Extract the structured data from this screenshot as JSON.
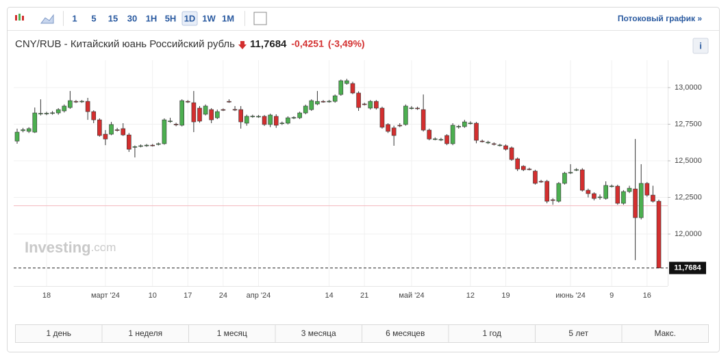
{
  "ui": {
    "toolbar": {
      "intervals": [
        "1",
        "5",
        "15",
        "30",
        "1H",
        "5H",
        "1D",
        "1W",
        "1M"
      ],
      "active": "1D",
      "streaming": "Потоковый график »"
    },
    "header": {
      "instrument": "CNY/RUB - Китайский юань Российский рубль",
      "price": "11,7684",
      "change": "-0,4251",
      "change_pct": "(-3,49%)",
      "info": "i"
    },
    "watermark": {
      "brand": "Investing",
      "suffix": ".com"
    },
    "ranges": [
      "1 день",
      "1 неделя",
      "1 месяц",
      "3 месяца",
      "6 месяцев",
      "1 год",
      "5 лет",
      "Макс."
    ]
  },
  "chart_data": {
    "type": "candlestick",
    "categories": [
      null,
      null,
      null,
      null,
      null,
      "18",
      null,
      null,
      null,
      null,
      null,
      null,
      null,
      null,
      null,
      "март '24",
      null,
      null,
      null,
      null,
      null,
      null,
      null,
      "10",
      null,
      null,
      null,
      null,
      null,
      "17",
      null,
      null,
      null,
      null,
      null,
      "24",
      null,
      null,
      null,
      null,
      null,
      "апр '24",
      null,
      null,
      null,
      null,
      null,
      null,
      null,
      null,
      null,
      null,
      null,
      "14",
      null,
      null,
      null,
      null,
      null,
      "21",
      null,
      null,
      null,
      null,
      null,
      null,
      null,
      "май '24",
      null,
      null,
      null,
      null,
      null,
      null,
      null,
      null,
      null,
      "12",
      null,
      null,
      null,
      null,
      null,
      "19",
      null,
      null,
      null,
      null,
      null,
      null,
      null,
      null,
      null,
      null,
      "июнь '24",
      null,
      null,
      null,
      null,
      null,
      null,
      "9",
      null,
      null,
      null,
      null,
      null,
      "16",
      null,
      null
    ],
    "open": [
      12.635,
      12.706,
      12.701,
      12.696,
      12.822,
      12.822,
      12.826,
      12.827,
      12.841,
      12.864,
      12.906,
      12.905,
      12.906,
      12.836,
      12.78,
      12.682,
      12.682,
      12.712,
      12.72,
      12.677,
      12.595,
      12.6,
      12.605,
      12.607,
      12.612,
      12.617,
      12.77,
      12.75,
      12.743,
      12.906,
      12.897,
      12.86,
      12.818,
      12.85,
      12.794,
      12.85,
      12.906,
      12.851,
      12.85,
      12.757,
      12.804,
      12.803,
      12.804,
      12.748,
      12.804,
      12.757,
      12.757,
      12.794,
      12.794,
      12.827,
      12.85,
      12.888,
      12.906,
      12.905,
      12.906,
      12.953,
      13.028,
      13.028,
      12.963,
      12.888,
      12.86,
      12.906,
      12.86,
      12.748,
      12.725,
      12.743,
      12.748,
      12.86,
      12.86,
      12.85,
      12.71,
      12.649,
      12.645,
      12.673,
      12.617,
      12.734,
      12.734,
      12.757,
      12.757,
      12.635,
      12.626,
      12.617,
      12.607,
      12.603,
      12.589,
      12.514,
      12.463,
      12.444,
      12.43,
      12.36,
      12.36,
      12.234,
      12.224,
      12.346,
      12.42,
      12.439,
      12.439,
      12.299,
      12.276,
      12.252,
      12.243,
      12.327,
      12.327,
      12.21,
      12.29,
      12.308,
      12.112,
      12.346,
      12.266,
      12.224
    ],
    "high": [
      12.72,
      12.725,
      12.73,
      12.864,
      12.92,
      12.835,
      12.84,
      12.86,
      12.885,
      12.977,
      12.915,
      12.915,
      12.93,
      12.845,
      12.79,
      12.71,
      12.766,
      12.725,
      12.757,
      12.69,
      12.605,
      12.612,
      12.615,
      12.615,
      12.625,
      12.79,
      12.794,
      12.76,
      12.92,
      12.915,
      12.977,
      12.874,
      12.885,
      12.86,
      12.85,
      12.858,
      12.92,
      12.874,
      12.874,
      12.815,
      12.815,
      12.813,
      12.813,
      12.822,
      12.818,
      12.768,
      12.804,
      12.804,
      12.836,
      12.884,
      12.92,
      12.977,
      12.915,
      12.916,
      12.953,
      13.055,
      13.06,
      13.04,
      12.975,
      12.897,
      12.915,
      12.915,
      12.87,
      12.757,
      12.74,
      12.757,
      12.885,
      12.874,
      12.87,
      12.953,
      12.72,
      12.66,
      12.657,
      12.682,
      12.757,
      12.745,
      12.78,
      12.77,
      12.766,
      12.645,
      12.637,
      12.626,
      12.617,
      12.612,
      12.598,
      12.523,
      12.47,
      12.453,
      12.439,
      12.37,
      12.37,
      12.245,
      12.355,
      12.425,
      12.477,
      12.45,
      12.45,
      12.31,
      12.285,
      12.27,
      12.36,
      12.338,
      12.337,
      12.3,
      12.33,
      12.649,
      12.477,
      12.355,
      12.33,
      12.235
    ],
    "low": [
      12.617,
      12.695,
      12.69,
      12.69,
      12.81,
      12.812,
      12.815,
      12.815,
      12.83,
      12.855,
      12.895,
      12.896,
      12.78,
      12.757,
      12.665,
      12.607,
      12.675,
      12.7,
      12.67,
      12.561,
      12.523,
      12.592,
      12.596,
      12.598,
      12.605,
      12.61,
      12.76,
      12.736,
      12.735,
      12.895,
      12.696,
      12.76,
      12.81,
      12.757,
      12.785,
      12.84,
      12.896,
      12.84,
      12.72,
      12.74,
      12.794,
      12.794,
      12.738,
      12.73,
      12.725,
      12.745,
      12.748,
      12.785,
      12.785,
      12.818,
      12.841,
      12.88,
      12.897,
      12.897,
      12.897,
      12.944,
      13.02,
      12.955,
      12.841,
      12.878,
      12.85,
      12.85,
      12.72,
      12.69,
      12.603,
      12.73,
      12.74,
      12.85,
      12.848,
      12.7,
      12.64,
      12.64,
      12.635,
      12.607,
      12.607,
      12.72,
      12.725,
      12.748,
      12.62,
      12.625,
      12.615,
      12.605,
      12.598,
      12.57,
      12.5,
      12.43,
      12.43,
      12.435,
      12.338,
      12.35,
      12.21,
      12.2,
      12.215,
      12.338,
      12.41,
      12.43,
      12.29,
      12.25,
      12.23,
      12.235,
      12.235,
      12.318,
      12.2,
      12.2,
      12.28,
      11.822,
      12.1,
      12.255,
      12.215,
      11.7684
    ],
    "close": [
      12.696,
      12.712,
      12.72,
      12.827,
      12.824,
      12.825,
      12.828,
      12.85,
      12.874,
      12.911,
      12.905,
      12.907,
      12.836,
      12.78,
      12.673,
      12.649,
      12.748,
      12.709,
      12.677,
      12.579,
      12.597,
      12.603,
      12.607,
      12.606,
      12.617,
      12.78,
      12.772,
      12.746,
      12.911,
      12.904,
      12.766,
      12.771,
      12.874,
      12.78,
      12.836,
      12.849,
      12.905,
      12.85,
      12.766,
      12.804,
      12.805,
      12.804,
      12.748,
      12.813,
      12.743,
      12.758,
      12.794,
      12.796,
      12.827,
      12.874,
      12.911,
      12.906,
      12.905,
      12.907,
      12.944,
      13.047,
      13.047,
      12.963,
      12.864,
      12.887,
      12.906,
      12.86,
      12.729,
      12.701,
      12.673,
      12.742,
      12.874,
      12.861,
      12.858,
      12.71,
      12.649,
      12.65,
      12.646,
      12.617,
      12.743,
      12.735,
      12.766,
      12.758,
      12.64,
      12.634,
      12.627,
      12.616,
      12.608,
      12.579,
      12.509,
      12.444,
      12.439,
      12.443,
      12.346,
      12.359,
      12.224,
      12.233,
      12.346,
      12.416,
      12.421,
      12.44,
      12.299,
      12.276,
      12.243,
      12.253,
      12.332,
      12.328,
      12.21,
      12.29,
      12.313,
      12.112,
      12.346,
      12.266,
      12.224,
      11.7684
    ],
    "up_color": "#4caf50",
    "down_color": "#d32f2f",
    "ylim": [
      11.645,
      13.187
    ],
    "yticks": [
      {
        "value": 12,
        "label": "12,0000"
      },
      {
        "value": 12.25,
        "label": "12,2500"
      },
      {
        "value": 12.5,
        "label": "12,5000"
      },
      {
        "value": 12.75,
        "label": "12,7500"
      },
      {
        "value": 13,
        "label": "13,0000"
      }
    ],
    "grid": true,
    "previous_close": 12.1935,
    "last_price": 11.7684,
    "last_price_label": "11,7684"
  }
}
